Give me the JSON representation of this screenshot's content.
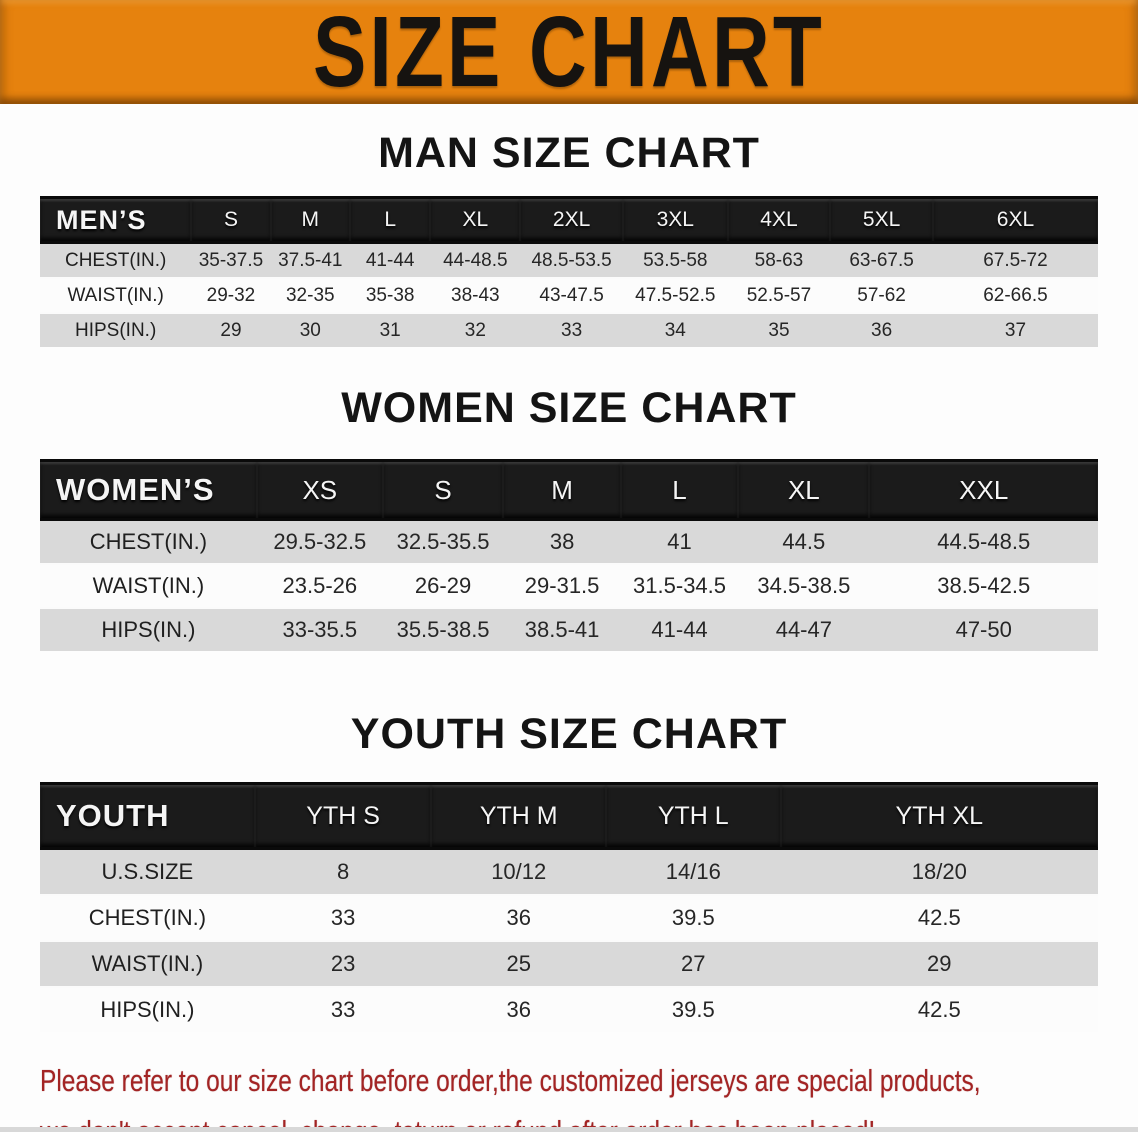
{
  "banner": {
    "title": "SIZE CHART"
  },
  "theme": {
    "banner_bg": "#e6820e",
    "bar_bg": "#1b1b1b",
    "row_alt_bg": "#d9d9d9",
    "row_bg": "#fcfcfc",
    "note_color": "#a32424"
  },
  "sections": [
    {
      "heading": "MAN SIZE CHART",
      "group_label": "MEN’S",
      "sizes": [
        "S",
        "M",
        "L",
        "XL",
        "2XL",
        "3XL",
        "4XL",
        "5XL",
        "6XL"
      ],
      "rows": [
        {
          "label": "CHEST(IN.)",
          "values": [
            "35-37.5",
            "37.5-41",
            "41-44",
            "44-48.5",
            "48.5-53.5",
            "53.5-58",
            "58-63",
            "63-67.5",
            "67.5-72"
          ]
        },
        {
          "label": "WAIST(IN.)",
          "values": [
            "29-32",
            "32-35",
            "35-38",
            "38-43",
            "43-47.5",
            "47.5-52.5",
            "52.5-57",
            "57-62",
            "62-66.5"
          ]
        },
        {
          "label": "HIPS(IN.)",
          "values": [
            "29",
            "30",
            "31",
            "32",
            "33",
            "34",
            "35",
            "36",
            "37"
          ]
        }
      ]
    },
    {
      "heading": "WOMEN SIZE CHART",
      "group_label": "WOMEN’S",
      "sizes": [
        "XS",
        "S",
        "M",
        "L",
        "XL",
        "XXL"
      ],
      "rows": [
        {
          "label": "CHEST(IN.)",
          "values": [
            "29.5-32.5",
            "32.5-35.5",
            "38",
            "41",
            "44.5",
            "44.5-48.5"
          ]
        },
        {
          "label": "WAIST(IN.)",
          "values": [
            "23.5-26",
            "26-29",
            "29-31.5",
            "31.5-34.5",
            "34.5-38.5",
            "38.5-42.5"
          ]
        },
        {
          "label": "HIPS(IN.)",
          "values": [
            "33-35.5",
            "35.5-38.5",
            "38.5-41",
            "41-44",
            "44-47",
            "47-50"
          ]
        }
      ]
    },
    {
      "heading": "YOUTH SIZE CHART",
      "group_label": "YOUTH",
      "sizes": [
        "YTH S",
        "YTH M",
        "YTH L",
        "YTH XL"
      ],
      "rows": [
        {
          "label": "U.S.SIZE",
          "values": [
            "8",
            "10/12",
            "14/16",
            "18/20"
          ]
        },
        {
          "label": "CHEST(IN.)",
          "values": [
            "33",
            "36",
            "39.5",
            "42.5"
          ]
        },
        {
          "label": "WAIST(IN.)",
          "values": [
            "23",
            "25",
            "27",
            "29"
          ]
        },
        {
          "label": "HIPS(IN.)",
          "values": [
            "33",
            "36",
            "39.5",
            "42.5"
          ]
        }
      ]
    }
  ],
  "footer": {
    "line1": "Please refer to our size chart before order,the customized jerseys are special products,",
    "line2": "we don't accept cancel, change, teturn or refund after order has been placed!"
  }
}
